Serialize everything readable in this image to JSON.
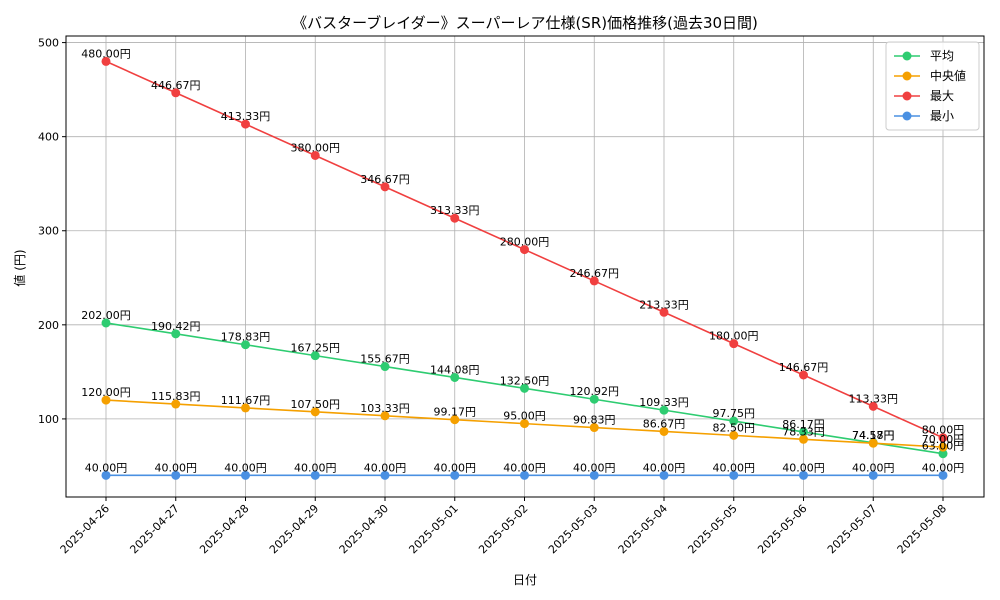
{
  "chart_data": {
    "type": "line",
    "title": "《バスターブレイダー》スーパーレア仕様(SR)価格推移(過去30日間)",
    "xlabel": "日付",
    "ylabel": "値 (円)",
    "ylim": [
      17,
      507
    ],
    "yticks": [
      100,
      200,
      300,
      400,
      500
    ],
    "grid": true,
    "legend_position": "top-right",
    "categories": [
      "2025-04-26",
      "2025-04-27",
      "2025-04-28",
      "2025-04-29",
      "2025-04-30",
      "2025-05-01",
      "2025-05-02",
      "2025-05-03",
      "2025-05-04",
      "2025-05-05",
      "2025-05-06",
      "2025-05-07",
      "2025-05-08"
    ],
    "series": [
      {
        "name": "平均",
        "color": "#2ecc71",
        "values": [
          202.0,
          190.42,
          178.83,
          167.25,
          155.67,
          144.08,
          132.5,
          120.92,
          109.33,
          97.75,
          86.17,
          74.58,
          63.0
        ],
        "labels": [
          "202.00円",
          "190.42円",
          "178.83円",
          "167.25円",
          "155.67円",
          "144.08円",
          "132.50円",
          "120.92円",
          "109.33円",
          "97.75円",
          "86.17円",
          "74.58円",
          "63.00円"
        ]
      },
      {
        "name": "中央値",
        "color": "#f5a000",
        "values": [
          120.0,
          115.83,
          111.67,
          107.5,
          103.33,
          99.17,
          95.0,
          90.83,
          86.67,
          82.5,
          78.33,
          74.17,
          70.0
        ],
        "labels": [
          "120.00円",
          "115.83円",
          "111.67円",
          "107.50円",
          "103.33円",
          "99.17円",
          "95.00円",
          "90.83円",
          "86.67円",
          "82.50円",
          "78.33円",
          "74.17円",
          "70.00円"
        ]
      },
      {
        "name": "最大",
        "color": "#f04040",
        "values": [
          480.0,
          446.67,
          413.33,
          380.0,
          346.67,
          313.33,
          280.0,
          246.67,
          213.33,
          180.0,
          146.67,
          113.33,
          80.0
        ],
        "labels": [
          "480.00円",
          "446.67円",
          "413.33円",
          "380.00円",
          "346.67円",
          "313.33円",
          "280.00円",
          "246.67円",
          "213.33円",
          "180.00円",
          "146.67円",
          "113.33円",
          "80.00円"
        ]
      },
      {
        "name": "最小",
        "color": "#4a90e2",
        "values": [
          40,
          40,
          40,
          40,
          40,
          40,
          40,
          40,
          40,
          40,
          40,
          40,
          40
        ],
        "labels": [
          "40.00円",
          "40.00円",
          "40.00円",
          "40.00円",
          "40.00円",
          "40.00円",
          "40.00円",
          "40.00円",
          "40.00円",
          "40.00円",
          "40.00円",
          "40.00円",
          "40.00円"
        ]
      }
    ]
  }
}
